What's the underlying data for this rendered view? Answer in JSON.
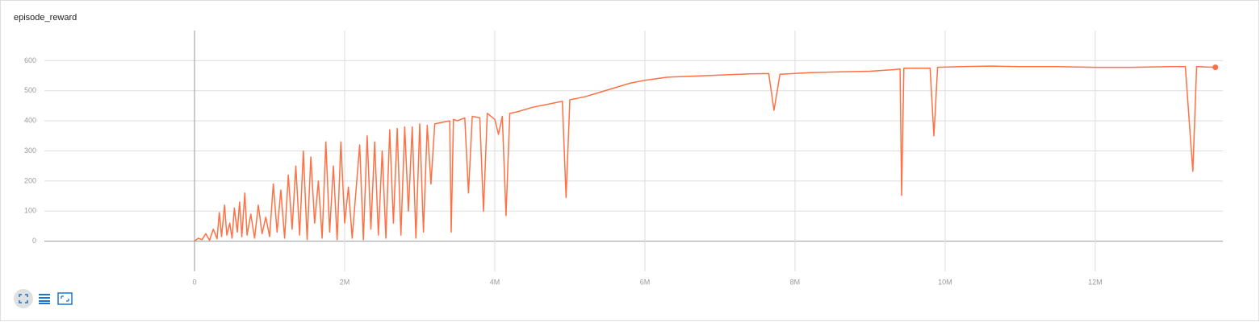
{
  "chart_data": {
    "type": "line",
    "title": "episode_reward",
    "x": [
      0,
      50000,
      100000,
      150000,
      200000,
      250000,
      300000,
      330000,
      360000,
      400000,
      430000,
      470000,
      500000,
      530000,
      570000,
      600000,
      630000,
      670000,
      700000,
      750000,
      800000,
      850000,
      900000,
      950000,
      1000000,
      1050000,
      1100000,
      1150000,
      1200000,
      1250000,
      1300000,
      1350000,
      1400000,
      1450000,
      1500000,
      1550000,
      1600000,
      1650000,
      1700000,
      1750000,
      1800000,
      1850000,
      1900000,
      1950000,
      2000000,
      2050000,
      2100000,
      2200000,
      2250000,
      2300000,
      2350000,
      2400000,
      2450000,
      2500000,
      2550000,
      2600000,
      2650000,
      2700000,
      2750000,
      2800000,
      2850000,
      2900000,
      2950000,
      3000000,
      3050000,
      3100000,
      3150000,
      3200000,
      3300000,
      3400000,
      3420000,
      3450000,
      3500000,
      3600000,
      3650000,
      3700000,
      3800000,
      3850000,
      3900000,
      4000000,
      4050000,
      4100000,
      4150000,
      4200000,
      4300000,
      4500000,
      4700000,
      4900000,
      4950000,
      5000000,
      5200000,
      5400000,
      5600000,
      5800000,
      6000000,
      6300000,
      6600000,
      7000000,
      7400000,
      7650000,
      7720000,
      7800000,
      8200000,
      8600000,
      9000000,
      9300000,
      9400000,
      9420000,
      9450000,
      9700000,
      9800000,
      9850000,
      9900000,
      10200000,
      10600000,
      11000000,
      11500000,
      12000000,
      12500000,
      13000000,
      13200000,
      13300000,
      13350000,
      13600000
    ],
    "series": [
      {
        "color": "#ff7043",
        "values": [
          0,
          10,
          5,
          25,
          3,
          40,
          8,
          95,
          15,
          120,
          20,
          60,
          10,
          110,
          30,
          130,
          15,
          160,
          20,
          90,
          10,
          120,
          25,
          80,
          15,
          190,
          30,
          170,
          10,
          220,
          40,
          250,
          20,
          300,
          5,
          280,
          60,
          200,
          10,
          330,
          30,
          250,
          5,
          330,
          60,
          180,
          10,
          320,
          5,
          350,
          40,
          330,
          20,
          300,
          10,
          370,
          60,
          375,
          20,
          380,
          100,
          380,
          10,
          390,
          30,
          385,
          190,
          390,
          395,
          400,
          30,
          405,
          400,
          410,
          160,
          415,
          410,
          100,
          425,
          405,
          355,
          415,
          85,
          425,
          430,
          445,
          455,
          465,
          145,
          470,
          480,
          495,
          510,
          525,
          535,
          545,
          548,
          552,
          556,
          557,
          435,
          555,
          560,
          563,
          565,
          570,
          572,
          152,
          575,
          575,
          575,
          350,
          578,
          580,
          582,
          580,
          580,
          578,
          578,
          580,
          580,
          232,
          580,
          578
        ]
      }
    ],
    "xlim": [
      -2000000,
      13700000
    ],
    "xticks": [
      0,
      {
        "value": 2000000,
        "label": "2M"
      },
      {
        "value": 4000000,
        "label": "4M"
      },
      {
        "value": 6000000,
        "label": "6M"
      },
      {
        "value": 8000000,
        "label": "8M"
      },
      {
        "value": 10000000,
        "label": "10M"
      },
      {
        "value": 12000000,
        "label": "12M"
      }
    ],
    "ylim": [
      -100,
      700
    ],
    "yticks": [
      0,
      100,
      200,
      300,
      400,
      500,
      600
    ],
    "grid": true
  }
}
